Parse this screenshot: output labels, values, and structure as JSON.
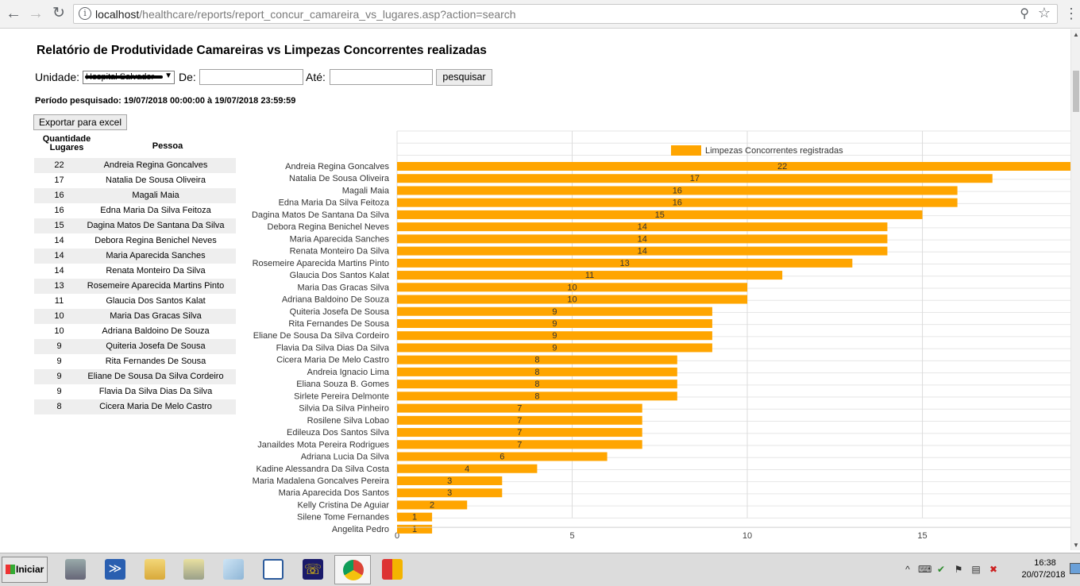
{
  "browser": {
    "url_host": "localhost",
    "url_path": "/healthcare/reports/report_concur_camareira_vs_lugares.asp?action=search"
  },
  "report": {
    "title": "Relatório de Produtividade Camareiras vs Limpezas Concorrentes realizadas",
    "filters": {
      "unit_label": "Unidade:",
      "unit_value": "Hospital Salvador",
      "from_label": "De:",
      "from_value": "",
      "to_label": "Até:",
      "to_value": "",
      "search_label": "pesquisar"
    },
    "period_text": "Período pesquisado: 19/07/2018 00:00:00 à 19/07/2018 23:59:59",
    "export_label": "Exportar para excel",
    "table": {
      "col_qty_line1": "Quantidade",
      "col_qty_line2": "Lugares",
      "col_person": "Pessoa",
      "rows": [
        {
          "qty": "22",
          "name": "Andreia Regina Goncalves"
        },
        {
          "qty": "17",
          "name": "Natalia De Sousa Oliveira"
        },
        {
          "qty": "16",
          "name": "Magali Maia"
        },
        {
          "qty": "16",
          "name": "Edna Maria Da Silva Feitoza"
        },
        {
          "qty": "15",
          "name": "Dagina Matos De Santana Da Silva"
        },
        {
          "qty": "14",
          "name": "Debora Regina Benichel Neves"
        },
        {
          "qty": "14",
          "name": "Maria Aparecida Sanches"
        },
        {
          "qty": "14",
          "name": "Renata Monteiro Da Silva"
        },
        {
          "qty": "13",
          "name": "Rosemeire Aparecida Martins Pinto"
        },
        {
          "qty": "11",
          "name": "Glaucia Dos Santos Kalat"
        },
        {
          "qty": "10",
          "name": "Maria Das Gracas Silva"
        },
        {
          "qty": "10",
          "name": "Adriana Baldoino De Souza"
        },
        {
          "qty": "9",
          "name": "Quiteria Josefa De Sousa"
        },
        {
          "qty": "9",
          "name": "Rita Fernandes De Sousa"
        },
        {
          "qty": "9",
          "name": "Eliane De Sousa Da Silva Cordeiro"
        },
        {
          "qty": "9",
          "name": "Flavia Da Silva Dias Da Silva"
        },
        {
          "qty": "8",
          "name": "Cicera Maria De Melo Castro"
        }
      ]
    }
  },
  "chart_data": {
    "type": "bar",
    "orientation": "horizontal",
    "title": "",
    "legend": "Limpezas Concorrentes registradas",
    "legend_position": "top",
    "series_color": "#ffa500",
    "categories": [
      "Andreia Regina Goncalves",
      "Natalia De Sousa Oliveira",
      "Magali Maia",
      "Edna Maria Da Silva Feitoza",
      "Dagina Matos De Santana Da Silva",
      "Debora Regina Benichel Neves",
      "Maria Aparecida Sanches",
      "Renata Monteiro Da Silva",
      "Rosemeire Aparecida Martins Pinto",
      "Glaucia Dos Santos Kalat",
      "Maria Das Gracas Silva",
      "Adriana Baldoino De Souza",
      "Quiteria Josefa De Sousa",
      "Rita Fernandes De Sousa",
      "Eliane De Sousa Da Silva Cordeiro",
      "Flavia Da Silva Dias Da Silva",
      "Cicera Maria De Melo Castro",
      "Andreia Ignacio Lima",
      "Eliana Souza B. Gomes",
      "Sirlete Pereira Delmonte",
      "Silvia Da Silva Pinheiro",
      "Rosilene Silva Lobao",
      "Edileuza Dos Santos Silva",
      "Janaildes Mota Pereira Rodrigues",
      "Adriana Lucia Da Silva",
      "Kadine Alessandra Da Silva Costa",
      "Maria Madalena Goncalves Pereira",
      "Maria Aparecida Dos Santos",
      "Kelly Cristina De Aguiar",
      "Silene Tome Fernandes",
      "Angelita Pedro"
    ],
    "values": [
      22,
      17,
      16,
      16,
      15,
      14,
      14,
      14,
      13,
      11,
      10,
      10,
      9,
      9,
      9,
      9,
      8,
      8,
      8,
      8,
      7,
      7,
      7,
      7,
      6,
      4,
      3,
      3,
      2,
      1,
      1
    ],
    "x_ticks": [
      0,
      5,
      10,
      15
    ],
    "xlim": [
      0,
      19.5
    ],
    "grid": true
  },
  "taskbar": {
    "start_label": "Iniciar",
    "time": "16:38",
    "date": "20/07/2018"
  }
}
